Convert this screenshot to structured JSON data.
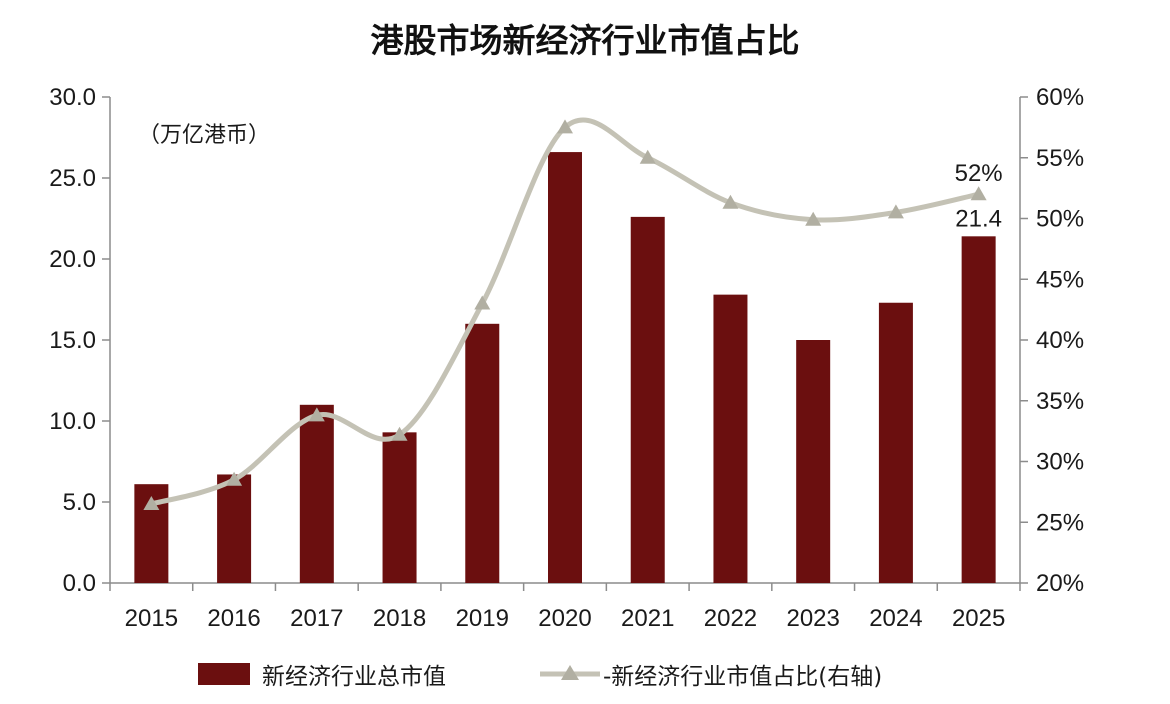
{
  "chart_data": {
    "type": "bar",
    "title": "港股市场新经济行业市值占比",
    "unit_label": "（万亿港币）",
    "categories": [
      "2015",
      "2016",
      "2017",
      "2018",
      "2019",
      "2020",
      "2021",
      "2022",
      "2023",
      "2024",
      "2025"
    ],
    "series": [
      {
        "name": "新经济行业总市值",
        "type": "bar",
        "axis": "left",
        "color": "#6b0f0f",
        "values": [
          6.1,
          6.7,
          11.0,
          9.3,
          16.0,
          26.6,
          22.6,
          17.8,
          15.0,
          17.3,
          21.4
        ]
      },
      {
        "name": "-新经济行业市值占比(右轴)",
        "type": "line",
        "axis": "right",
        "color": "#c4c2b5",
        "marker": "triangle",
        "smooth": true,
        "values": [
          26.5,
          28.5,
          33.8,
          32.2,
          43.0,
          57.5,
          55.0,
          51.3,
          49.9,
          50.5,
          52.0
        ]
      }
    ],
    "y_left": {
      "min": 0,
      "max": 30,
      "step": 5,
      "tick_labels": [
        "0.0",
        "5.0",
        "10.0",
        "15.0",
        "20.0",
        "25.0",
        "30.0"
      ]
    },
    "y_right": {
      "min": 20,
      "max": 60,
      "step": 5,
      "tick_labels": [
        "20%",
        "25%",
        "30%",
        "35%",
        "40%",
        "45%",
        "50%",
        "55%",
        "60%"
      ]
    },
    "annotations": [
      {
        "series": 0,
        "index": 10,
        "text": "21.4"
      },
      {
        "series": 1,
        "index": 10,
        "text": "52%"
      }
    ],
    "grid": false,
    "legend_position": "bottom"
  }
}
